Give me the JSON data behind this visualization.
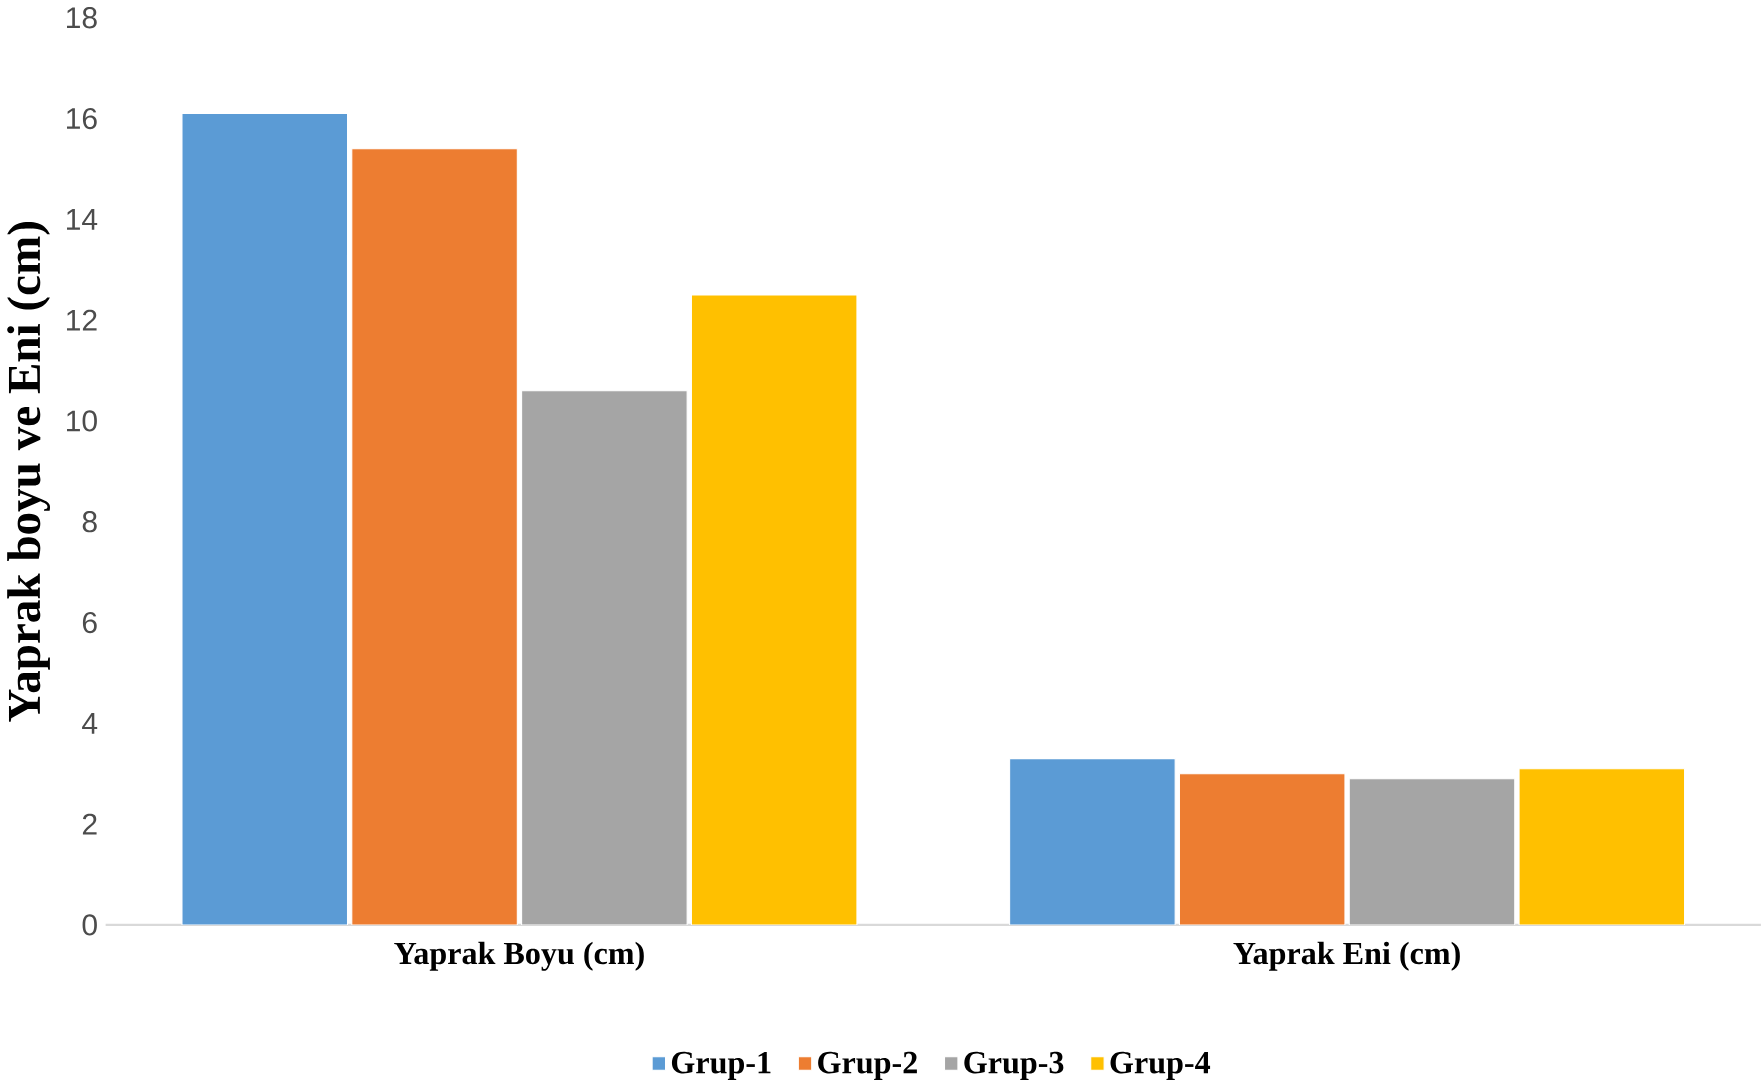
{
  "chart_data": {
    "type": "bar",
    "ylabel": "Yaprak boyu ve Eni (cm)",
    "categories": [
      "Yaprak Boyu (cm)",
      "Yaprak Eni (cm)"
    ],
    "series": [
      {
        "name": "Grup-1",
        "color": "#5b9bd5",
        "values": [
          16.1,
          3.3
        ]
      },
      {
        "name": "Grup-2",
        "color": "#ed7d31",
        "values": [
          15.4,
          3.0
        ]
      },
      {
        "name": "Grup-3",
        "color": "#a5a5a5",
        "values": [
          10.6,
          2.9
        ]
      },
      {
        "name": "Grup-4",
        "color": "#ffc000",
        "values": [
          12.5,
          3.1
        ]
      }
    ],
    "ylim": [
      0,
      18
    ],
    "yticks": [
      0,
      2,
      4,
      6,
      8,
      10,
      12,
      14,
      16,
      18
    ],
    "grid": false,
    "legend": "bottom"
  }
}
